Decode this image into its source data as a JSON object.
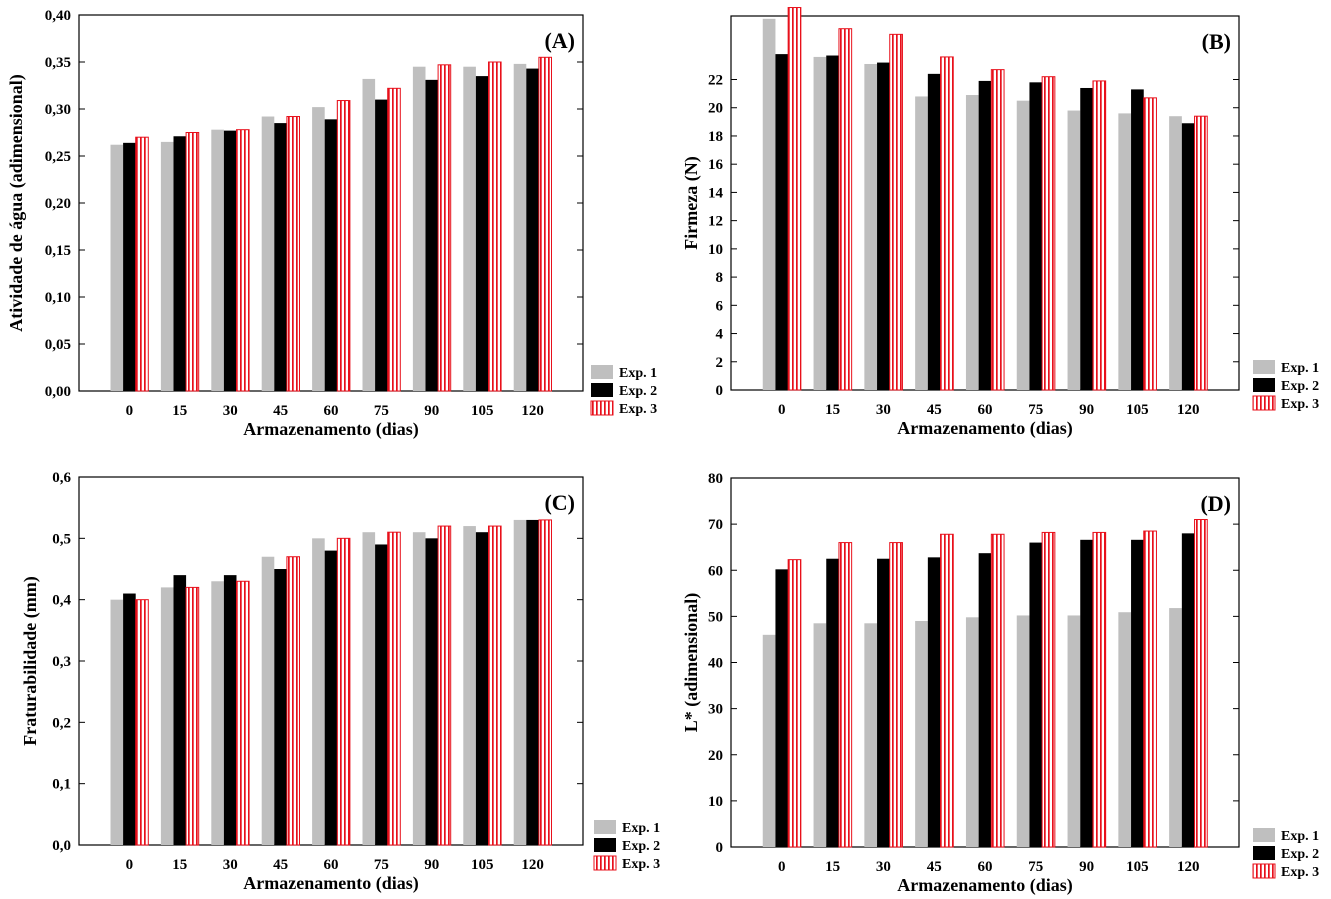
{
  "colors": {
    "exp1": "#bfbfbf",
    "exp2": "#000000",
    "exp3_fill": "#ffffff",
    "exp3_stripe": "#e8101b",
    "frame": "#000000",
    "background": "#ffffff"
  },
  "legend": {
    "entries": [
      "Exp. 1",
      "Exp. 2",
      "Exp. 3"
    ]
  },
  "chart_data": [
    {
      "type": "bar",
      "panel_label": "(A)",
      "xlabel": "Armazenamento (dias)",
      "ylabel": "Atividade de água (adimensional)",
      "categories": [
        "0",
        "15",
        "30",
        "45",
        "60",
        "75",
        "90",
        "105",
        "120"
      ],
      "ylim": [
        0,
        0.4
      ],
      "yticks": [
        0,
        0.05,
        0.1,
        0.15,
        0.2,
        0.25,
        0.3,
        0.35,
        0.4
      ],
      "ytick_labels": [
        "0,00",
        "0,05",
        "0,10",
        "0,15",
        "0,20",
        "0,25",
        "0,30",
        "0,35",
        "0,40"
      ],
      "grid": false,
      "legend_position": "outside-bottom-right",
      "series": [
        {
          "name": "Exp. 1",
          "values": [
            0.262,
            0.265,
            0.278,
            0.292,
            0.302,
            0.332,
            0.345,
            0.345,
            0.348
          ]
        },
        {
          "name": "Exp. 2",
          "values": [
            0.264,
            0.271,
            0.277,
            0.285,
            0.289,
            0.31,
            0.331,
            0.335,
            0.343
          ]
        },
        {
          "name": "Exp. 3",
          "values": [
            0.27,
            0.275,
            0.278,
            0.292,
            0.309,
            0.322,
            0.347,
            0.35,
            0.355
          ]
        }
      ]
    },
    {
      "type": "bar",
      "panel_label": "(B)",
      "xlabel": "Armazenamento (dias)",
      "ylabel": "Firmeza (N)",
      "categories": [
        "0",
        "15",
        "30",
        "45",
        "60",
        "75",
        "90",
        "105",
        "120"
      ],
      "ylim": [
        0,
        26.5
      ],
      "yticks": [
        0,
        2,
        4,
        6,
        8,
        10,
        12,
        14,
        16,
        18,
        20,
        22
      ],
      "ytick_labels": [
        "0",
        "2",
        "4",
        "6",
        "8",
        "10",
        "12",
        "14",
        "16",
        "18",
        "20",
        "22"
      ],
      "grid": false,
      "legend_position": "outside-bottom-right",
      "series": [
        {
          "name": "Exp. 1",
          "values": [
            26.3,
            23.6,
            23.1,
            20.8,
            20.9,
            20.5,
            19.8,
            19.6,
            19.4
          ]
        },
        {
          "name": "Exp. 2",
          "values": [
            23.8,
            23.7,
            23.2,
            22.4,
            21.9,
            21.8,
            21.4,
            21.3,
            18.9
          ]
        },
        {
          "name": "Exp. 3",
          "values": [
            27.1,
            25.6,
            25.2,
            23.6,
            22.7,
            22.2,
            21.9,
            20.7,
            19.4
          ]
        }
      ]
    },
    {
      "type": "bar",
      "panel_label": "(C)",
      "xlabel": "Armazenamento (dias)",
      "ylabel": "Fraturabilidade (mm)",
      "categories": [
        "0",
        "15",
        "30",
        "45",
        "60",
        "75",
        "90",
        "105",
        "120"
      ],
      "ylim": [
        0,
        0.6
      ],
      "yticks": [
        0,
        0.1,
        0.2,
        0.3,
        0.4,
        0.5,
        0.6
      ],
      "ytick_labels": [
        "0,0",
        "0,1",
        "0,2",
        "0,3",
        "0,4",
        "0,5",
        "0,6"
      ],
      "grid": false,
      "legend_position": "outside-bottom-right",
      "series": [
        {
          "name": "Exp. 1",
          "values": [
            0.4,
            0.42,
            0.43,
            0.47,
            0.5,
            0.51,
            0.51,
            0.52,
            0.53
          ]
        },
        {
          "name": "Exp. 2",
          "values": [
            0.41,
            0.44,
            0.44,
            0.45,
            0.48,
            0.49,
            0.5,
            0.51,
            0.53
          ]
        },
        {
          "name": "Exp. 3",
          "values": [
            0.4,
            0.42,
            0.43,
            0.47,
            0.5,
            0.51,
            0.52,
            0.52,
            0.53
          ]
        }
      ]
    },
    {
      "type": "bar",
      "panel_label": "(D)",
      "xlabel": "Armazenamento (dias)",
      "ylabel": "L* (adimensional)",
      "categories": [
        "0",
        "15",
        "30",
        "45",
        "60",
        "75",
        "90",
        "105",
        "120"
      ],
      "ylim": [
        0,
        80
      ],
      "yticks": [
        0,
        10,
        20,
        30,
        40,
        50,
        60,
        70,
        80
      ],
      "ytick_labels": [
        "0",
        "10",
        "20",
        "30",
        "40",
        "50",
        "60",
        "70",
        "80"
      ],
      "grid": false,
      "legend_position": "outside-bottom-right",
      "series": [
        {
          "name": "Exp. 1",
          "values": [
            46.0,
            48.5,
            48.5,
            49.0,
            49.8,
            50.2,
            50.2,
            50.9,
            51.8
          ]
        },
        {
          "name": "Exp. 2",
          "values": [
            60.2,
            62.5,
            62.5,
            62.8,
            63.7,
            66.0,
            66.6,
            66.6,
            68.0
          ]
        },
        {
          "name": "Exp. 3",
          "values": [
            62.3,
            66.0,
            66.0,
            67.8,
            67.8,
            68.2,
            68.2,
            68.5,
            71.0
          ]
        }
      ]
    }
  ]
}
